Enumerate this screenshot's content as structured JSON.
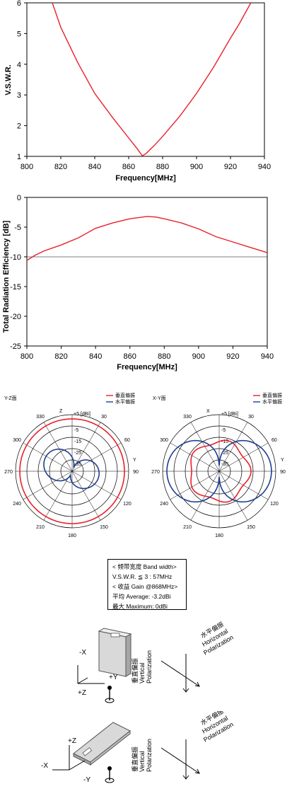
{
  "chart_data": [
    {
      "type": "line",
      "xlabel": "Frequency[MHz]",
      "ylabel": "V.S.W.R.",
      "xlim": [
        800,
        940
      ],
      "ylim": [
        1,
        6
      ],
      "xticks": [
        "800",
        "820",
        "840",
        "860",
        "880",
        "900",
        "920",
        "940"
      ],
      "yticks": [
        "1",
        "2",
        "3",
        "4",
        "5",
        "6"
      ],
      "grid": false,
      "series": [
        {
          "color": "#e8202a",
          "x": [
            815,
            820,
            830,
            840,
            850,
            860,
            865,
            868,
            870,
            875,
            880,
            890,
            900,
            910,
            920,
            925,
            932
          ],
          "y": [
            6.0,
            5.2,
            4.05,
            3.05,
            2.3,
            1.6,
            1.25,
            1.02,
            1.08,
            1.35,
            1.65,
            2.3,
            3.05,
            3.9,
            4.85,
            5.3,
            6.0
          ]
        }
      ]
    },
    {
      "type": "line",
      "xlabel": "Frequency[MHz]",
      "ylabel": "Total Radiation Efficiency [dB]",
      "xlim": [
        800,
        940
      ],
      "ylim": [
        -25,
        0
      ],
      "xticks": [
        "800",
        "820",
        "840",
        "860",
        "880",
        "900",
        "920",
        "940"
      ],
      "yticks": [
        "0",
        "-5",
        "-10",
        "-15",
        "-20",
        "-25"
      ],
      "grid": "y-at-minus-10",
      "series": [
        {
          "color": "#e8202a",
          "x": [
            800,
            805,
            810,
            820,
            830,
            840,
            850,
            860,
            870,
            875,
            880,
            890,
            900,
            910,
            920,
            930,
            940
          ],
          "y": [
            -10.6,
            -9.7,
            -9.0,
            -8.0,
            -6.8,
            -5.2,
            -4.3,
            -3.6,
            -3.2,
            -3.3,
            -3.6,
            -4.3,
            -5.3,
            -6.6,
            -7.5,
            -8.4,
            -9.3
          ]
        }
      ]
    },
    {
      "type": "polar",
      "plane_label": "Y-Z面",
      "axis_top": "Z",
      "axis_side": "Y",
      "unit_label": "+5 [dBi]",
      "rings": [
        "+5",
        "-5",
        "-15",
        "-25",
        "-35"
      ],
      "angles": [
        "0",
        "30",
        "60",
        "90",
        "120",
        "150",
        "180",
        "210",
        "240",
        "270",
        "300",
        "330"
      ],
      "legend": [
        "垂直偏振",
        "水平偏振"
      ],
      "series": [
        {
          "name": "垂直偏振",
          "color": "#e8202a",
          "shape": "circle",
          "level_dbi": -1
        },
        {
          "name": "水平偏振",
          "color": "#1f3f8f",
          "shape": "figure-eight",
          "peak_dbi": -11
        }
      ]
    },
    {
      "type": "polar",
      "plane_label": "X-Y面",
      "axis_top": "X",
      "axis_side": "Y",
      "unit_label": "+5 [dBi]",
      "rings": [
        "+5",
        "-5",
        "-15",
        "-25",
        "-35"
      ],
      "angles": [
        "0",
        "30",
        "60",
        "90",
        "120",
        "150",
        "180",
        "210",
        "240",
        "270",
        "300",
        "330"
      ],
      "legend": [
        "垂直偏振",
        "水平偏振"
      ],
      "series": [
        {
          "name": "垂直偏振",
          "color": "#e8202a",
          "shape": "circle",
          "level_dbi": -14
        },
        {
          "name": "水平偏振",
          "color": "#1f3f8f",
          "shape": "double-lobe",
          "peak_dbi": -2
        }
      ]
    }
  ],
  "specs": {
    "line1": "< 频带宽度 Band width>",
    "line2": "V.S.W.R. ≦ 3  :  57MHz",
    "line3": "< 收益 Gain @868MHz>",
    "line4": "平均 Average: -3.2dBi",
    "line5": "最大 Maximum: 0dBi"
  },
  "orientation_1": {
    "minus_x": "-X",
    "plus_z": "+Z",
    "plus_y": "+Y",
    "vertical_cn": "垂直偏振",
    "vertical_en": "Vertical",
    "vertical_en2": "Polarization",
    "horizontal_cn": "水平偏振",
    "horizontal_en": "Horizontal",
    "horizontal_en2": "Polarization"
  },
  "orientation_2": {
    "plus_z": "+Z",
    "minus_x": "-X",
    "minus_y": "-Y",
    "vertical_cn": "垂直偏振",
    "vertical_en": "Vertical",
    "vertical_en2": "Polarization",
    "horizontal_cn": "水平偏振",
    "horizontal_en": "Horizontal",
    "horizontal_en2": "Polarization"
  },
  "colors": {
    "vertical": "#e8202a",
    "horizontal": "#1f3f8f"
  }
}
